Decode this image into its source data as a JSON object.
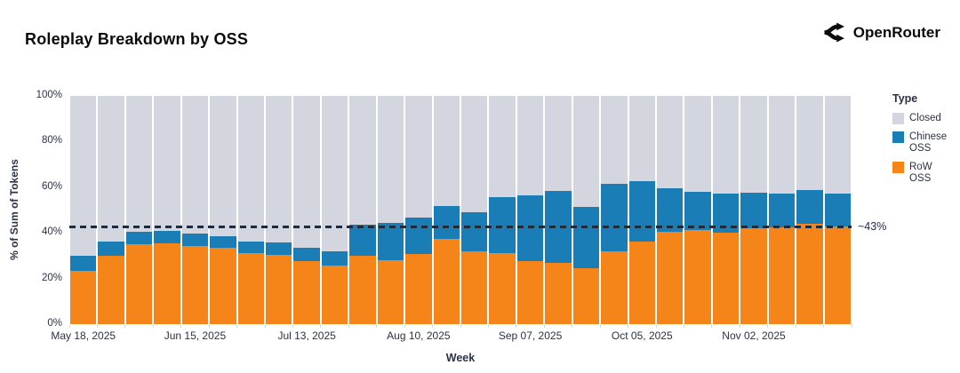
{
  "header": {
    "title": "Roleplay Breakdown by OSS",
    "brand": "OpenRouter"
  },
  "legend": {
    "title": "Type",
    "items": [
      {
        "label": "Closed",
        "color": "#d3d6de"
      },
      {
        "label": "Chinese OSS",
        "color": "#1b7db6"
      },
      {
        "label": "RoW OSS",
        "color": "#f58518"
      }
    ]
  },
  "chart_data": {
    "type": "bar",
    "stacked": true,
    "title": "Roleplay Breakdown by OSS",
    "xlabel": "Week",
    "ylabel": "% of Sum of Tokens",
    "ylim": [
      0,
      100
    ],
    "grid": false,
    "legend_position": "right",
    "y_ticks": {
      "values": [
        0,
        20,
        40,
        60,
        80,
        100
      ],
      "labels": [
        "0%",
        "20%",
        "40%",
        "60%",
        "80%",
        "100%"
      ]
    },
    "x_label_indices": [
      0,
      4,
      8,
      12,
      16,
      20,
      24
    ],
    "x_tick_labels_shown": [
      "May 18, 2025",
      "Jun 15, 2025",
      "Jul 13, 2025",
      "Aug 10, 2025",
      "Sep 07, 2025",
      "Oct 05, 2025",
      "Nov 02, 2025"
    ],
    "categories": [
      "May 18, 2025",
      "May 25, 2025",
      "Jun 01, 2025",
      "Jun 08, 2025",
      "Jun 15, 2025",
      "Jun 22, 2025",
      "Jun 29, 2025",
      "Jul 06, 2025",
      "Jul 13, 2025",
      "Jul 20, 2025",
      "Jul 27, 2025",
      "Aug 03, 2025",
      "Aug 10, 2025",
      "Aug 17, 2025",
      "Aug 24, 2025",
      "Aug 31, 2025",
      "Sep 07, 2025",
      "Sep 14, 2025",
      "Sep 21, 2025",
      "Sep 28, 2025",
      "Oct 05, 2025",
      "Oct 12, 2025",
      "Oct 19, 2025",
      "Oct 26, 2025",
      "Nov 02, 2025",
      "Nov 09, 2025",
      "Nov 16, 2025",
      "Nov 23, 2025"
    ],
    "series": [
      {
        "name": "RoW OSS",
        "color": "#f58518",
        "values": [
          23.2,
          30.1,
          35.0,
          35.4,
          34.1,
          33.3,
          31.1,
          30.5,
          27.5,
          25.6,
          29.8,
          28.1,
          30.7,
          37.2,
          32.0,
          31.1,
          27.5,
          27.0,
          24.6,
          31.8,
          36.3,
          40.5,
          41.1,
          40.2,
          42.2,
          42.4,
          43.9,
          42.8
        ]
      },
      {
        "name": "Chinese OSS",
        "color": "#1b7db6",
        "values": [
          6.9,
          6.2,
          5.6,
          5.5,
          5.5,
          5.2,
          5.2,
          5.4,
          5.8,
          6.4,
          13.9,
          16.4,
          16.0,
          14.7,
          16.9,
          24.7,
          28.9,
          31.4,
          26.6,
          29.8,
          26.2,
          18.9,
          17.0,
          17.1,
          15.5,
          14.7,
          14.7,
          14.3
        ]
      },
      {
        "name": "Closed",
        "color": "#d3d6de",
        "values": [
          69.9,
          63.7,
          59.4,
          59.1,
          60.4,
          61.5,
          63.7,
          64.1,
          66.7,
          68.0,
          56.3,
          55.5,
          53.3,
          48.1,
          51.1,
          44.2,
          43.6,
          41.6,
          48.8,
          38.4,
          37.5,
          40.6,
          41.9,
          42.7,
          42.3,
          42.9,
          41.4,
          42.9
        ]
      }
    ],
    "reference_line": {
      "value": 43,
      "label": "~43%",
      "style": "dashed",
      "color": "#1e2a3e"
    }
  }
}
